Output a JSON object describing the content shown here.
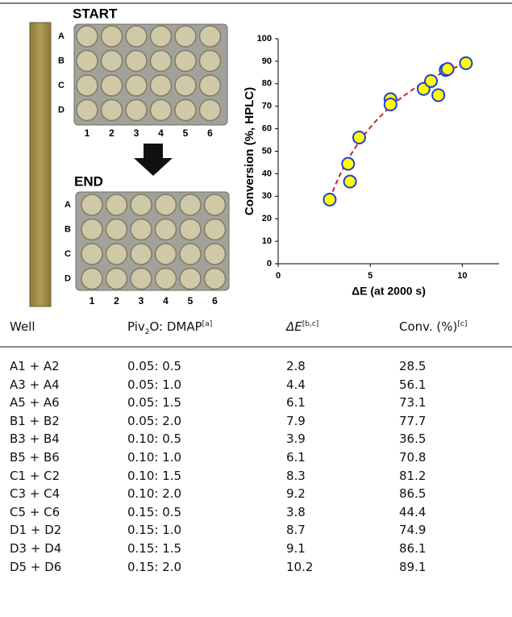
{
  "plates": [
    {
      "label": "START",
      "rows": [
        "A",
        "B",
        "C",
        "D"
      ],
      "columns": [
        1,
        2,
        3,
        4,
        5,
        6
      ]
    },
    {
      "label": "END",
      "rows": [
        "A",
        "B",
        "C",
        "D"
      ],
      "columns": [
        1,
        2,
        3,
        4,
        5,
        6
      ]
    }
  ],
  "chart_data": {
    "type": "scatter",
    "x_label": "ΔE (at 2000 s)",
    "y_label": "Conversion (%, HPLC)",
    "x": [
      2.8,
      3.8,
      3.9,
      4.4,
      6.1,
      6.1,
      7.9,
      8.3,
      8.7,
      9.1,
      9.2,
      10.2
    ],
    "y": [
      28.5,
      44.4,
      36.5,
      56.1,
      73.1,
      70.8,
      77.7,
      81.2,
      74.9,
      86.1,
      86.5,
      89.1
    ],
    "xlim": [
      0,
      12
    ],
    "xticks": [
      0,
      5,
      10
    ],
    "ylim": [
      0,
      100
    ],
    "yticks": [
      0,
      10,
      20,
      30,
      40,
      50,
      60,
      70,
      80,
      90,
      100
    ],
    "marker_fill": "#ffff00",
    "marker_edge": "#1f3fd6",
    "trend_color": "#c0282a"
  },
  "table": {
    "header": [
      "Well",
      {
        "main": "Piv",
        "sub": "2",
        "rest": "O: DMAP",
        "note": "[a]"
      },
      {
        "main": "ΔE",
        "note": "[b,c]"
      },
      {
        "main": "Conv. (%)",
        "note": "[c]"
      }
    ],
    "rows": [
      [
        "A1 + A2",
        "0.05: 0.5",
        2.8,
        28.5
      ],
      [
        "A3 + A4",
        "0.05: 1.0",
        4.4,
        56.1
      ],
      [
        "A5 + A6",
        "0.05: 1.5",
        6.1,
        73.1
      ],
      [
        "B1 + B2",
        "0.05: 2.0",
        7.9,
        77.7
      ],
      [
        "B3 + B4",
        "0.10: 0.5",
        3.9,
        36.5
      ],
      [
        "B5 + B6",
        "0.10: 1.0",
        6.1,
        70.8
      ],
      [
        "C1 + C2",
        "0.10: 1.5",
        8.3,
        81.2
      ],
      [
        "C3 + C4",
        "0.10: 2.0",
        9.2,
        86.5
      ],
      [
        "C5 + C6",
        "0.15: 0.5",
        3.8,
        44.4
      ],
      [
        "D1 + D2",
        "0.15: 1.0",
        8.7,
        74.9
      ],
      [
        "D3 + D4",
        "0.15: 1.5",
        9.1,
        86.1
      ],
      [
        "D5 + D6",
        "0.15: 2.0",
        10.2,
        89.1
      ]
    ]
  }
}
